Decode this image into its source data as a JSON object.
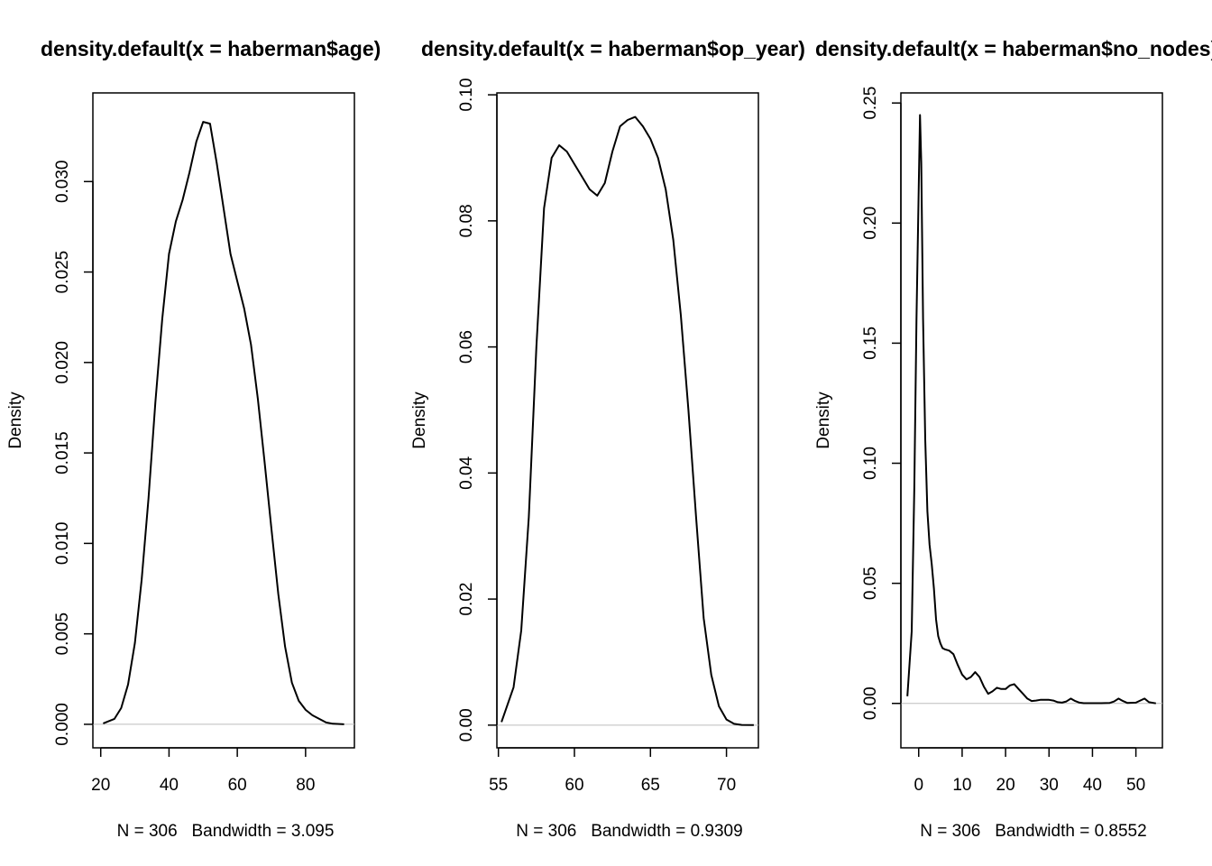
{
  "chart_data": [
    {
      "type": "line",
      "title": "density.default(x = haberman$age)",
      "xlabel": "N = 306   Bandwidth = 3.095",
      "ylabel": "Density",
      "xlim": [
        17.7,
        94.3
      ],
      "ylim": [
        -0.0013,
        0.0349
      ],
      "xticks": [
        20,
        40,
        60,
        80
      ],
      "yticks": [
        0,
        0.005,
        0.01,
        0.015,
        0.02,
        0.025,
        0.03
      ],
      "ytick_labels": [
        "0.000",
        "0.005",
        "0.010",
        "0.015",
        "0.020",
        "0.025",
        "0.030"
      ],
      "baseline": 0,
      "grid": false,
      "x": [
        20.7,
        24,
        26,
        28,
        30,
        32,
        34,
        36,
        38,
        40,
        42,
        44,
        46,
        48,
        50,
        52,
        54,
        56,
        58,
        60,
        62,
        64,
        66,
        68,
        70,
        72,
        74,
        76,
        78,
        80,
        82,
        84,
        86,
        88,
        91.3
      ],
      "y": [
        5e-05,
        0.0003,
        0.0009,
        0.0022,
        0.0045,
        0.008,
        0.0125,
        0.0178,
        0.0224,
        0.026,
        0.0278,
        0.029,
        0.0305,
        0.0322,
        0.0333,
        0.0332,
        0.031,
        0.0285,
        0.026,
        0.0245,
        0.023,
        0.021,
        0.018,
        0.0145,
        0.0108,
        0.0072,
        0.0043,
        0.0023,
        0.0013,
        0.0008,
        0.0005,
        0.0003,
        0.0001,
        3e-05,
        0.0
      ]
    },
    {
      "type": "line",
      "title": "density.default(x = haberman$op_year)",
      "xlabel": "N = 306   Bandwidth = 0.9309",
      "ylabel": "Density",
      "xlim": [
        54.9,
        72.1
      ],
      "ylim": [
        -0.0036,
        0.1003
      ],
      "xticks": [
        55,
        60,
        65,
        70
      ],
      "yticks": [
        0,
        0.02,
        0.04,
        0.06,
        0.08,
        0.1
      ],
      "ytick_labels": [
        "0.00",
        "0.02",
        "0.04",
        "0.06",
        "0.08",
        "0.10"
      ],
      "baseline": 0,
      "grid": false,
      "x": [
        55.2,
        56,
        56.5,
        57,
        57.5,
        58,
        58.5,
        59,
        59.5,
        60,
        60.5,
        61,
        61.5,
        62,
        62.5,
        63,
        63.5,
        64,
        64.5,
        65,
        65.5,
        66,
        66.5,
        67,
        67.5,
        68,
        68.5,
        69,
        69.5,
        70,
        70.5,
        71,
        71.8
      ],
      "y": [
        0.0005,
        0.006,
        0.015,
        0.033,
        0.06,
        0.082,
        0.09,
        0.092,
        0.091,
        0.089,
        0.087,
        0.085,
        0.084,
        0.086,
        0.091,
        0.095,
        0.096,
        0.0965,
        0.095,
        0.093,
        0.09,
        0.085,
        0.077,
        0.065,
        0.05,
        0.033,
        0.017,
        0.008,
        0.003,
        0.0009,
        0.0002,
        3e-05,
        0.0
      ]
    },
    {
      "type": "line",
      "title": "density.default(x = haberman$no_nodes)",
      "xlabel": "N = 306   Bandwidth = 0.8552",
      "ylabel": "Density",
      "xlim": [
        -4.1,
        56.1
      ],
      "ylim": [
        -0.0185,
        0.2542
      ],
      "xticks": [
        0,
        10,
        20,
        30,
        40,
        50
      ],
      "yticks": [
        0,
        0.05,
        0.1,
        0.15,
        0.2,
        0.25
      ],
      "ytick_labels": [
        "0.00",
        "0.05",
        "0.10",
        "0.15",
        "0.20",
        "0.25"
      ],
      "baseline": 0,
      "grid": false,
      "x": [
        -2.6,
        -1.6,
        -1.0,
        -0.5,
        0,
        0.3,
        0.6,
        1.0,
        1.5,
        2.0,
        2.5,
        3.0,
        3.5,
        4.0,
        4.5,
        5.0,
        5.5,
        6.0,
        7.0,
        8.0,
        9.0,
        10.0,
        11.0,
        12.0,
        13.0,
        14.0,
        15.0,
        16.0,
        17.0,
        18.0,
        19.0,
        20.0,
        21.0,
        22.0,
        23.0,
        24.0,
        25.0,
        26.0,
        27.0,
        28.0,
        29.0,
        30.0,
        31.0,
        32.0,
        33.0,
        34.0,
        35.0,
        36.0,
        37.0,
        38.0,
        40.0,
        42.0,
        44.0,
        45.0,
        46.0,
        47.0,
        48.0,
        50.0,
        51.0,
        52.0,
        53.0,
        54.6
      ],
      "y": [
        0.003,
        0.03,
        0.09,
        0.16,
        0.215,
        0.245,
        0.225,
        0.16,
        0.11,
        0.08,
        0.066,
        0.058,
        0.048,
        0.035,
        0.028,
        0.025,
        0.023,
        0.0225,
        0.022,
        0.0205,
        0.016,
        0.012,
        0.01,
        0.011,
        0.013,
        0.011,
        0.007,
        0.004,
        0.005,
        0.0065,
        0.006,
        0.006,
        0.0075,
        0.008,
        0.006,
        0.004,
        0.002,
        0.001,
        0.0012,
        0.0015,
        0.0015,
        0.0015,
        0.0012,
        0.0005,
        0.0003,
        0.0008,
        0.002,
        0.001,
        0.0003,
        0.0001,
        0.0001,
        0.0001,
        0.0002,
        0.0008,
        0.002,
        0.001,
        0.0002,
        0.0003,
        0.0012,
        0.002,
        0.0005,
        0.0
      ]
    }
  ],
  "colors": {
    "curve": "#000000",
    "baseline": "#BEBEBE",
    "box": "#000000"
  }
}
